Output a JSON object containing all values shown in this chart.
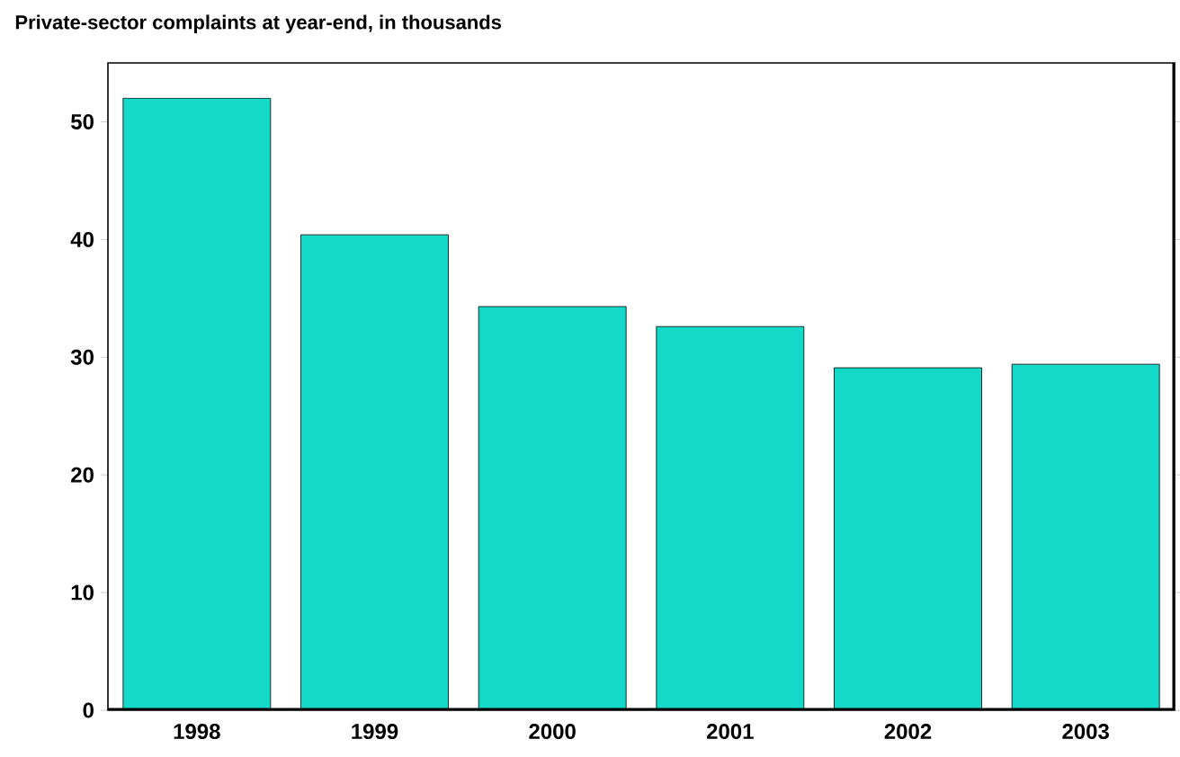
{
  "chart_data": {
    "type": "bar",
    "title": "Private-sector complaints at year-end, in thousands",
    "categories": [
      "1998",
      "1999",
      "2000",
      "2001",
      "2002",
      "2003"
    ],
    "values": [
      52,
      40.4,
      34.3,
      32.6,
      29.1,
      29.4
    ],
    "color": "#14d8c8",
    "ylim": [
      0,
      55
    ],
    "yticks": [
      0,
      10,
      20,
      30,
      40,
      50
    ],
    "grid": false
  }
}
